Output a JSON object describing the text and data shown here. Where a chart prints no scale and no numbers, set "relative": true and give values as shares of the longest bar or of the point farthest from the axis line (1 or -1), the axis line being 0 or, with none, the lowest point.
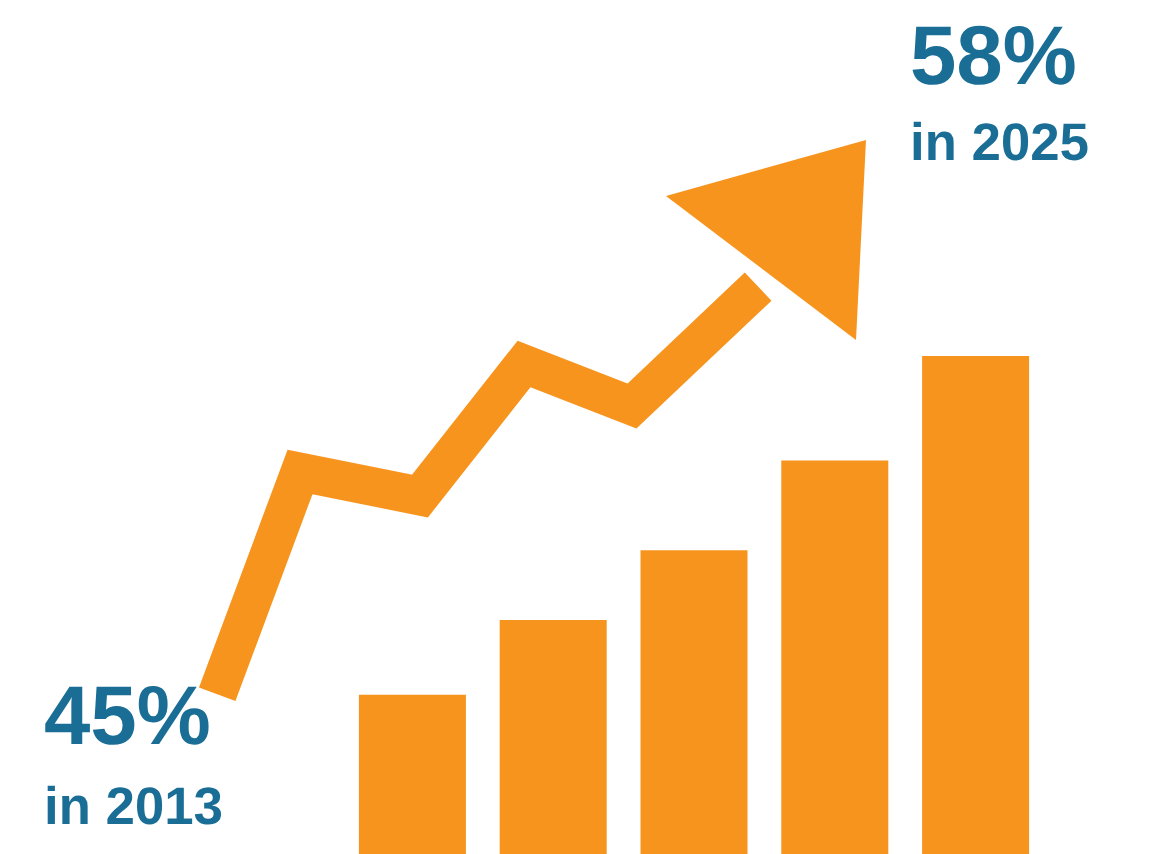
{
  "chart_data": {
    "type": "bar",
    "relative": true,
    "categories": [
      null,
      null,
      null,
      null,
      null
    ],
    "values": [
      0.32,
      0.47,
      0.61,
      0.79,
      1.0
    ],
    "color": "#f7941d",
    "annotations": [
      "45%",
      "in 2013",
      "58%",
      "in 2025"
    ]
  }
}
